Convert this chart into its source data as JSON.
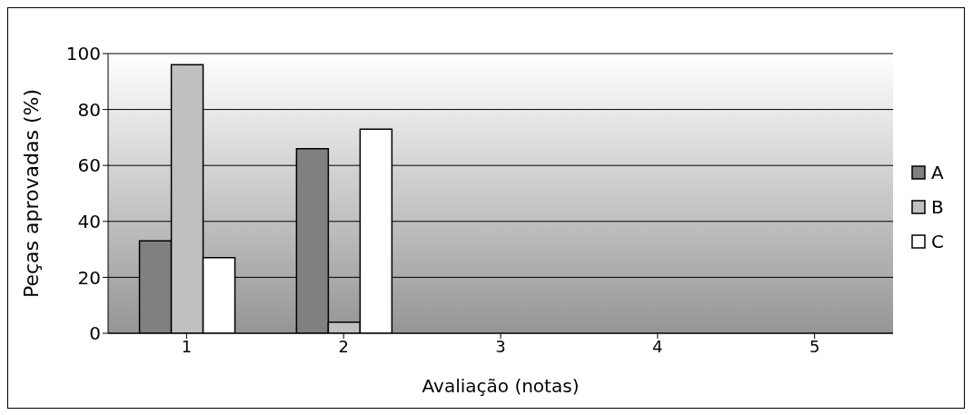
{
  "chart_data": {
    "type": "bar",
    "xlabel": "Avaliação (notas)",
    "ylabel": "Peças aprovadas (%)",
    "categories": [
      "1",
      "2",
      "3",
      "4",
      "5"
    ],
    "series": [
      {
        "name": "A",
        "color": "#808080",
        "values": [
          33,
          66,
          null,
          null,
          null
        ]
      },
      {
        "name": "B",
        "color": "#c0c0c0",
        "values": [
          96,
          4,
          null,
          null,
          null
        ]
      },
      {
        "name": "C",
        "color": "#ffffff",
        "values": [
          27,
          73,
          null,
          null,
          null
        ]
      }
    ],
    "ylim": [
      0,
      100
    ],
    "yticks": [
      0,
      20,
      40,
      60,
      80,
      100
    ],
    "grid": "y",
    "legend": "right"
  }
}
